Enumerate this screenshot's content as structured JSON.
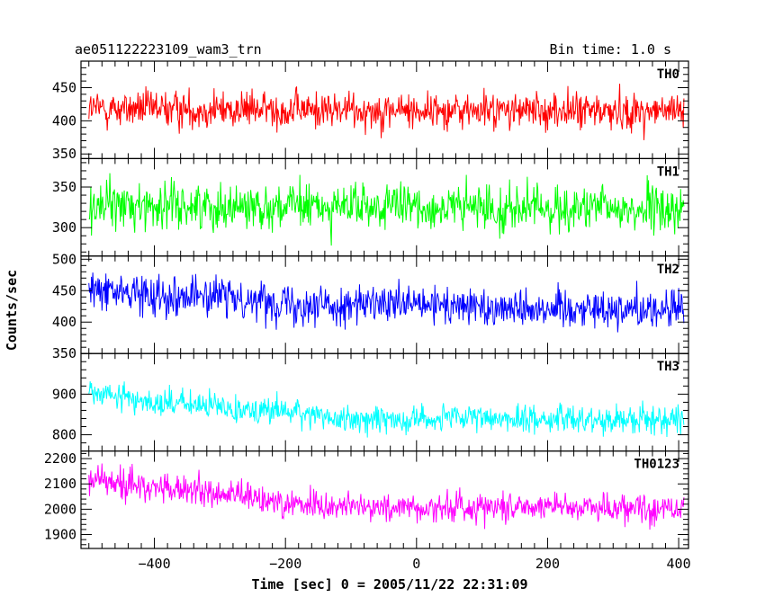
{
  "header": {
    "title": "ae051122223109_wam3_trn",
    "bin_time": "Bin time: 1.0 s"
  },
  "chart_data": {
    "type": "line",
    "title": "ae051122223109_wam3_trn",
    "xlabel": "Time [sec] 0 = 2005/11/22 22:31:09",
    "ylabel": "Counts/sec",
    "xlim": [
      -512,
      415
    ],
    "x_range": [
      -500,
      408
    ],
    "bin_time_s": 1.0,
    "x_ticks": [
      -400,
      -200,
      0,
      200,
      400
    ],
    "x_tick_labels": [
      "−400",
      "−200",
      "0",
      "200",
      "400"
    ],
    "grid": false,
    "panels": [
      {
        "name": "TH0",
        "color": "#ff0000",
        "ylim": [
          343,
          490
        ],
        "y_ticks": [
          350,
          400,
          450
        ],
        "y_minor_step": 10,
        "mean": 415,
        "noise": 20,
        "trend": [
          [
            -500,
            418
          ],
          [
            408,
            414
          ]
        ]
      },
      {
        "name": "TH1",
        "color": "#00ff00",
        "ylim": [
          265,
          385
        ],
        "y_ticks": [
          300,
          350
        ],
        "y_minor_step": 10,
        "mean": 324,
        "noise": 20,
        "trend": [
          [
            -500,
            328
          ],
          [
            408,
            322
          ]
        ]
      },
      {
        "name": "TH2",
        "color": "#0000ff",
        "ylim": [
          350,
          505
        ],
        "y_ticks": [
          350,
          400,
          450,
          500
        ],
        "y_minor_step": 10,
        "mean": 428,
        "noise": 22,
        "trend": [
          [
            -500,
            450
          ],
          [
            -300,
            440
          ],
          [
            -150,
            428
          ],
          [
            408,
            420
          ]
        ]
      },
      {
        "name": "TH3",
        "color": "#00ffff",
        "ylim": [
          760,
          1000
        ],
        "y_ticks": [
          800,
          900
        ],
        "y_minor_step": 20,
        "mean": 850,
        "noise": 24,
        "trend": [
          [
            -500,
            905
          ],
          [
            -400,
            880
          ],
          [
            -300,
            868
          ],
          [
            -200,
            858
          ],
          [
            -100,
            836
          ],
          [
            0,
            840
          ],
          [
            408,
            838
          ]
        ]
      },
      {
        "name": "TH0123",
        "color": "#ff00ff",
        "ylim": [
          1845,
          2230
        ],
        "y_ticks": [
          1900,
          2000,
          2100,
          2200
        ],
        "y_minor_step": 20,
        "mean": 2030,
        "noise": 42,
        "trend": [
          [
            -500,
            2120
          ],
          [
            -400,
            2085
          ],
          [
            -300,
            2060
          ],
          [
            -200,
            2025
          ],
          [
            -100,
            2010
          ],
          [
            0,
            2005
          ],
          [
            200,
            2015
          ],
          [
            408,
            2000
          ]
        ]
      }
    ]
  }
}
